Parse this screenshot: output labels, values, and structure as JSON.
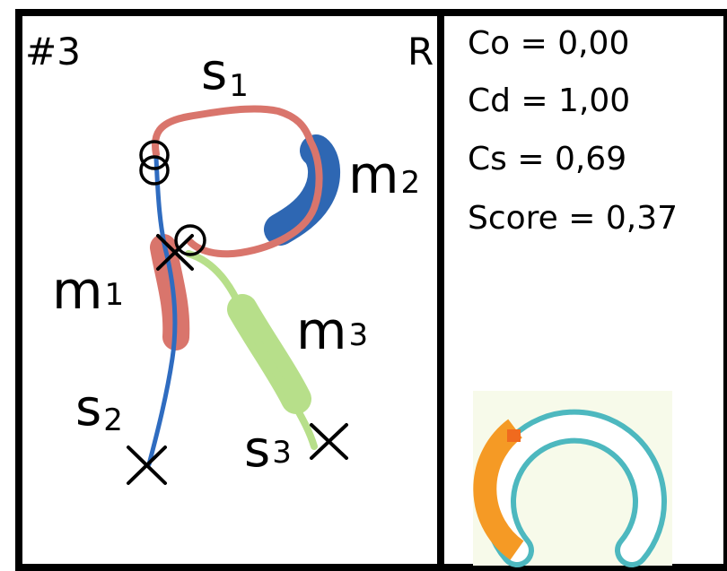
{
  "left_panel": {
    "id_label": "#3",
    "letter": "R",
    "stroke_labels": [
      {
        "base": "s",
        "sub": "1"
      },
      {
        "base": "s",
        "sub": "2"
      },
      {
        "base": "s",
        "sub": "3"
      }
    ],
    "marker_labels": [
      {
        "base": "m",
        "sub": "1"
      },
      {
        "base": "m",
        "sub": "2"
      },
      {
        "base": "m",
        "sub": "3"
      }
    ]
  },
  "right_panel": {
    "metrics": [
      "Co = 0,00",
      "Cd = 1,00",
      "Cs = 0,69",
      "Score = 0,37"
    ]
  },
  "colors": {
    "stroke_s1": "#d9756c",
    "stroke_s2": "#2f6cc0",
    "stroke_s3": "#b7df8a",
    "marker_m1": "#d9756c",
    "marker_m2": "#2e67b3",
    "marker_m3": "#b7df8a",
    "gauge_ring": "#4db8bf",
    "gauge_fill": "#f59a25",
    "gauge_bg": "#f7faea"
  }
}
